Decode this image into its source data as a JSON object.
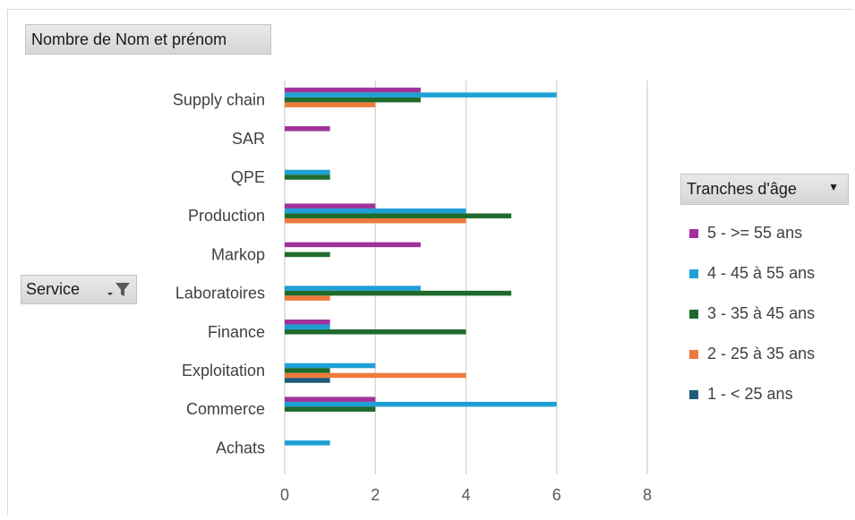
{
  "header": {
    "values_field": "Nombre de Nom et prénom"
  },
  "row_field": {
    "label": "Service",
    "dropdown_icon": "dropdown-arrow-icon",
    "filter_icon": "funnel-filter-icon"
  },
  "legend_field": {
    "label": "Tranches d'âge",
    "dropdown_icon": "dropdown-arrow-icon"
  },
  "chart_data": {
    "type": "bar",
    "orientation": "horizontal",
    "categories": [
      "Supply chain",
      "SAR",
      "QPE",
      "Production",
      "Markop",
      "Laboratoires",
      "Finance",
      "Exploitation",
      "Commerce",
      "Achats"
    ],
    "series": [
      {
        "name": "5 - >= 55 ans",
        "color": "#a0339b",
        "values": [
          3,
          1,
          null,
          2,
          3,
          null,
          1,
          null,
          2,
          null
        ]
      },
      {
        "name": "4 - 45 à 55 ans",
        "color": "#1ea0d6",
        "values": [
          6,
          null,
          1,
          4,
          null,
          3,
          1,
          2,
          6,
          1
        ]
      },
      {
        "name": "3 - 35 à 45 ans",
        "color": "#1e6b2c",
        "values": [
          3,
          null,
          1,
          5,
          1,
          5,
          4,
          1,
          2,
          null
        ]
      },
      {
        "name": "2 - 25 à 35 ans",
        "color": "#ee7a3c",
        "values": [
          2,
          null,
          null,
          4,
          null,
          1,
          null,
          4,
          null,
          null
        ]
      },
      {
        "name": "1 - < 25 ans",
        "color": "#1f5c7a",
        "values": [
          null,
          null,
          null,
          null,
          null,
          null,
          null,
          1,
          null,
          null
        ]
      }
    ],
    "xlim": [
      0,
      8
    ],
    "xticks": [
      "0",
      "2",
      "4",
      "6",
      "8"
    ],
    "grid": "vertical",
    "legend_position": "right"
  }
}
